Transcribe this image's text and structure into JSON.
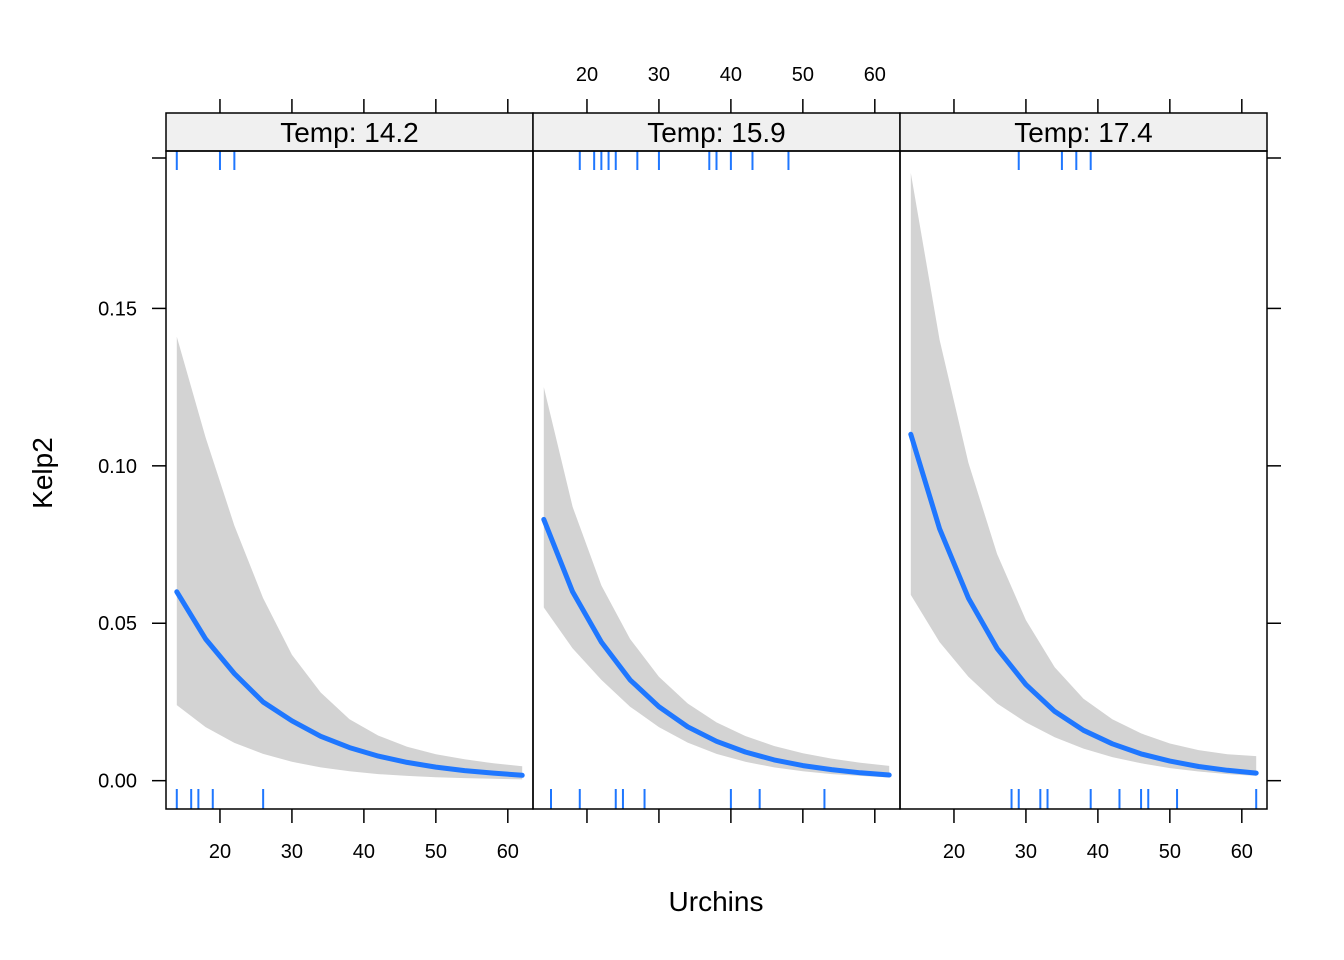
{
  "chart_data": {
    "type": "line",
    "layout": "three faceted panels, shared axes, strip labels on top",
    "xlabel": "Urchins",
    "ylabel": "Kelp2",
    "xlim": [
      12.5,
      63.5
    ],
    "ylim": [
      -0.009,
      0.2
    ],
    "xticks": [
      20,
      30,
      40,
      50,
      60
    ],
    "yticks": [
      0.0,
      0.05,
      0.1,
      0.15
    ],
    "ytick_labels": [
      "0.00",
      "0.05",
      "0.10",
      "0.15"
    ],
    "line_color": "#1f77ff",
    "band_color": "#d3d3d3",
    "rug_color": "#1f77ff",
    "strip_bg": "#f0f0f0",
    "panels": [
      {
        "strip_label": "Temp: 14.2",
        "x": [
          14,
          18,
          22,
          26,
          30,
          34,
          38,
          42,
          46,
          50,
          54,
          58,
          62
        ],
        "fit": [
          0.06,
          0.045,
          0.034,
          0.025,
          0.019,
          0.0141,
          0.0105,
          0.0078,
          0.0058,
          0.0043,
          0.0032,
          0.0024,
          0.0017
        ],
        "lower": [
          0.024,
          0.017,
          0.012,
          0.0085,
          0.006,
          0.0042,
          0.003,
          0.0021,
          0.0015,
          0.0011,
          0.0008,
          0.0006,
          0.0004
        ],
        "upper": [
          0.141,
          0.109,
          0.081,
          0.058,
          0.04,
          0.028,
          0.0195,
          0.0143,
          0.0108,
          0.0084,
          0.0068,
          0.0055,
          0.0046
        ],
        "rug_top": [
          14,
          20,
          22
        ],
        "rug_bottom": [
          14,
          16,
          17,
          19,
          26
        ]
      },
      {
        "strip_label": "Temp: 15.9",
        "x": [
          14,
          18,
          22,
          26,
          30,
          34,
          38,
          42,
          46,
          50,
          54,
          58,
          62
        ],
        "fit": [
          0.083,
          0.06,
          0.044,
          0.032,
          0.0235,
          0.0171,
          0.0125,
          0.0091,
          0.0066,
          0.0048,
          0.0035,
          0.0025,
          0.0018
        ],
        "lower": [
          0.055,
          0.042,
          0.032,
          0.0235,
          0.017,
          0.0121,
          0.0085,
          0.006,
          0.0042,
          0.003,
          0.0021,
          0.0015,
          0.001
        ],
        "upper": [
          0.125,
          0.087,
          0.062,
          0.045,
          0.033,
          0.0245,
          0.0185,
          0.0142,
          0.011,
          0.0087,
          0.007,
          0.0057,
          0.0047
        ],
        "rug_top": [
          19,
          21,
          22,
          23,
          24,
          27,
          30,
          37,
          38,
          40,
          43,
          48
        ],
        "rug_bottom": [
          15,
          19,
          24,
          25,
          28,
          40,
          44,
          53
        ]
      },
      {
        "strip_label": "Temp: 17.4",
        "x": [
          14,
          18,
          22,
          26,
          30,
          34,
          38,
          42,
          46,
          50,
          54,
          58,
          62
        ],
        "fit": [
          0.11,
          0.08,
          0.058,
          0.042,
          0.0305,
          0.022,
          0.016,
          0.0117,
          0.0085,
          0.0062,
          0.0045,
          0.0033,
          0.0024
        ],
        "lower": [
          0.059,
          0.044,
          0.033,
          0.0245,
          0.0185,
          0.0138,
          0.0102,
          0.0075,
          0.0055,
          0.004,
          0.0029,
          0.0021,
          0.0015
        ],
        "upper": [
          0.193,
          0.14,
          0.101,
          0.072,
          0.051,
          0.036,
          0.026,
          0.0195,
          0.015,
          0.0118,
          0.0097,
          0.0084,
          0.0078
        ],
        "rug_top": [
          29,
          35,
          37,
          39
        ],
        "rug_bottom": [
          28,
          29,
          32,
          33,
          39,
          43,
          46,
          47,
          51,
          62
        ]
      }
    ]
  }
}
